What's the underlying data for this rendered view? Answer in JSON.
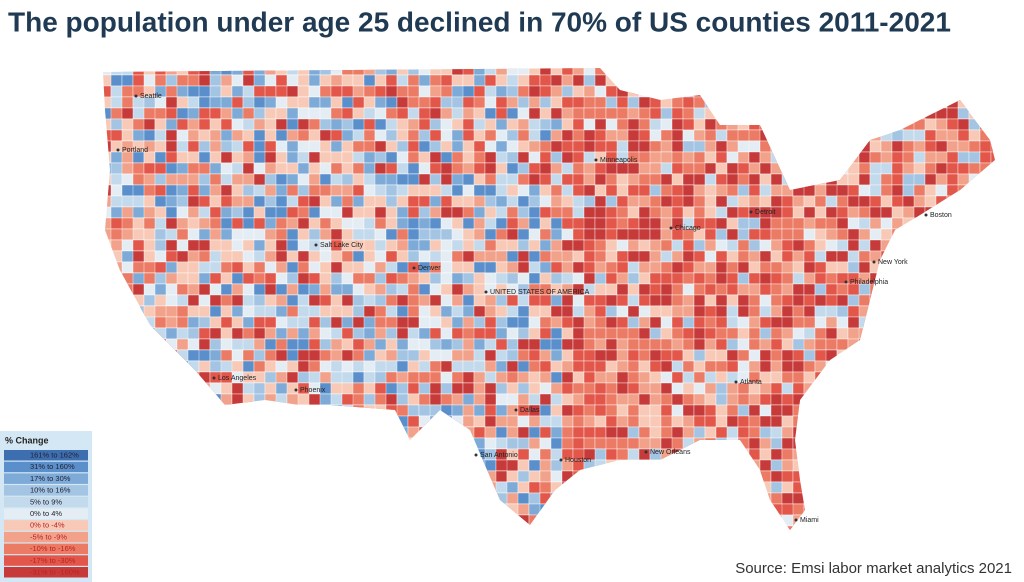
{
  "title": "The population under age 25 declined in 70% of US counties 2011-2021",
  "source": "Source: Emsi labor market analytics 2021",
  "legend": {
    "title": "% Change",
    "items": [
      {
        "label": "161% to 162%",
        "color": "#3d6fb0"
      },
      {
        "label": "31% to 160%",
        "color": "#5b8fcb"
      },
      {
        "label": "17% to 30%",
        "color": "#7eaad8"
      },
      {
        "label": "10% to 16%",
        "color": "#a3c4e3"
      },
      {
        "label": "5% to 9%",
        "color": "#c3d9ec"
      },
      {
        "label": "0% to 4%",
        "color": "#e4edf4"
      },
      {
        "label": "0% to -4%",
        "color": "#f7c9b6"
      },
      {
        "label": "-5% to -9%",
        "color": "#f2a28b"
      },
      {
        "label": "-10% to -16%",
        "color": "#ec7b65"
      },
      {
        "label": "-17% to -30%",
        "color": "#e2574a"
      },
      {
        "label": "-31% to -160%",
        "color": "#c73a3a"
      }
    ]
  },
  "map": {
    "places": [
      "Seattle",
      "Portland",
      "Salt Lake City",
      "Denver",
      "Los Angeles",
      "Phoenix",
      "UNITED STATES OF AMERICA",
      "Minneapolis",
      "Chicago",
      "Detroit",
      "New York",
      "Philadelphia",
      "Boston",
      "Atlanta",
      "Dallas",
      "Houston",
      "San Antonio",
      "New Orleans",
      "Miami"
    ]
  }
}
